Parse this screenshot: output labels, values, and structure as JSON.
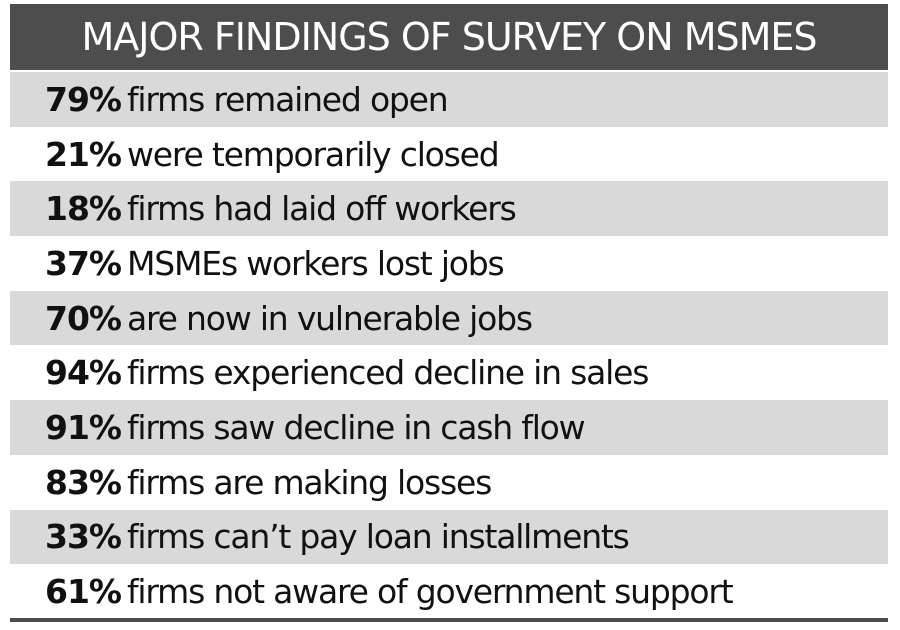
{
  "title": "MAJOR FINDINGS OF SURVEY ON MSMES",
  "colors": {
    "header_background": "#4d4d4d",
    "header_text": "#ffffff",
    "row_shaded": "#d9d9d9",
    "row_plain": "#ffffff",
    "text": "#111111"
  },
  "findings": [
    {
      "percent": "79%",
      "text": "firms remained open"
    },
    {
      "percent": "21%",
      "text": "were temporarily closed"
    },
    {
      "percent": "18%",
      "text": "firms had laid off workers"
    },
    {
      "percent": "37%",
      "text": "MSMEs workers lost jobs"
    },
    {
      "percent": "70%",
      "text": "are now in vulnerable jobs"
    },
    {
      "percent": "94%",
      "text": "firms experienced decline in sales"
    },
    {
      "percent": "91%",
      "text": "firms saw decline in cash flow"
    },
    {
      "percent": "83%",
      "text": "firms are making losses"
    },
    {
      "percent": "33%",
      "text": "firms can’t pay loan installments"
    },
    {
      "percent": "61%",
      "text": "firms not aware of government support"
    }
  ]
}
